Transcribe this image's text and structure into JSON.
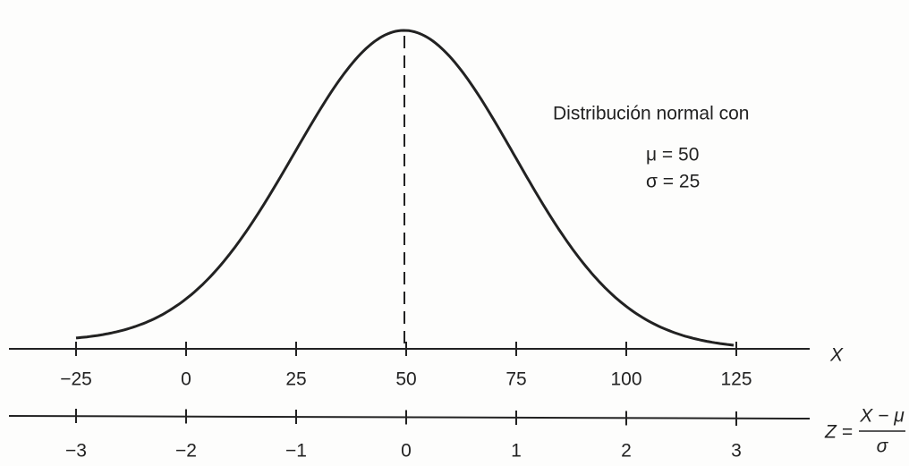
{
  "annotation": {
    "title": "Distribución normal con",
    "mean": "μ = 50",
    "sd": "σ = 25"
  },
  "x_axis": {
    "label": "X",
    "ticks": [
      "−25",
      "0",
      "25",
      "50",
      "75",
      "100",
      "125"
    ]
  },
  "z_axis": {
    "label": "Z =",
    "numerator": "X − μ",
    "denominator": "σ",
    "ticks": [
      "−3",
      "−2",
      "−1",
      "0",
      "1",
      "2",
      "3"
    ]
  }
}
